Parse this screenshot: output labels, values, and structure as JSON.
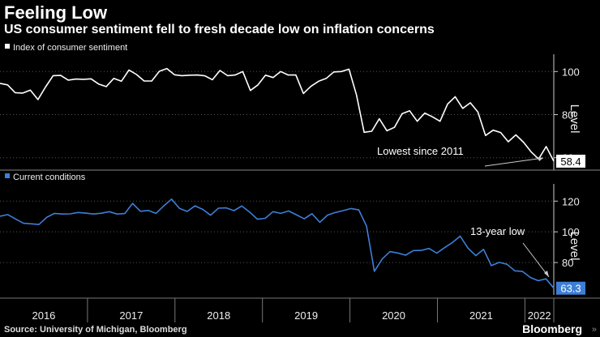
{
  "header": {
    "title": "Feeling Low",
    "subtitle": "US consumer sentiment fell to fresh decade low on inflation concerns"
  },
  "footer": {
    "source": "Source: University of Michigan, Bloomberg",
    "brand": "Bloomberg",
    "brand_mark": "»"
  },
  "colors": {
    "top": "#ffffff",
    "bottom": "#3d7fd6",
    "background": "#000000"
  },
  "chart_data": [
    {
      "type": "line",
      "legend": "Index of consumer sentiment",
      "ylabel": "Level",
      "ylim": [
        55,
        105
      ],
      "yticks": [
        60,
        80,
        100
      ],
      "x_start": 2016.0,
      "x_end": 2022.33,
      "annotation": "Lowest since 2011",
      "last_label": "58.4",
      "values": [
        94.5,
        93.8,
        90.2,
        90.0,
        91.4,
        87.0,
        92.8,
        98.1,
        98.2,
        96.0,
        96.5,
        96.4,
        96.6,
        94.2,
        93.0,
        96.8,
        95.5,
        100.7,
        98.6,
        95.6,
        95.6,
        100.1,
        101.4,
        98.5,
        98.1,
        98.3,
        98.4,
        98.0,
        96.2,
        100.5,
        98.1,
        98.4,
        100.0,
        91.2,
        93.8,
        98.3,
        97.2,
        100.0,
        98.4,
        98.4,
        89.8,
        93.2,
        95.5,
        96.8,
        99.8,
        100.0,
        101.1,
        89.1,
        71.8,
        72.3,
        78.1,
        72.5,
        74.1,
        80.4,
        81.8,
        76.9,
        80.7,
        79.0,
        76.9,
        84.9,
        88.3,
        82.9,
        85.5,
        81.2,
        70.3,
        72.8,
        71.7,
        67.4,
        70.6,
        67.2,
        62.8,
        59.4,
        65.2,
        58.4
      ]
    },
    {
      "type": "line",
      "legend": "Current conditions",
      "ylabel": "Level",
      "ylim": [
        60,
        127
      ],
      "yticks": [
        80,
        100,
        120
      ],
      "x_start": 2016.0,
      "x_end": 2022.33,
      "annotation": "13-year low",
      "last_label": "63.3",
      "values": [
        110.1,
        111.2,
        108.4,
        105.6,
        105.2,
        104.8,
        109.5,
        112.0,
        111.6,
        111.7,
        112.6,
        112.2,
        111.6,
        112.1,
        113.1,
        111.6,
        111.9,
        118.5,
        113.4,
        113.9,
        112.0,
        116.9,
        121.3,
        115.3,
        113.3,
        116.9,
        114.6,
        110.8,
        115.4,
        115.6,
        113.8,
        116.8,
        112.9,
        108.2,
        108.8,
        113.1,
        112.0,
        113.6,
        111.1,
        108.5,
        111.8,
        106.2,
        110.9,
        112.6,
        113.8,
        115.2,
        114.3,
        103.7,
        74.3,
        82.3,
        87.1,
        86.2,
        84.8,
        87.8,
        87.9,
        89.2,
        86.1,
        89.7,
        93.0,
        97.2,
        89.4,
        84.5,
        88.6,
        78.0,
        80.1,
        78.9,
        74.6,
        74.2,
        70.3,
        68.2,
        69.4,
        63.3
      ]
    }
  ],
  "x_axis": {
    "years": [
      "2016",
      "2017",
      "2018",
      "2019",
      "2020",
      "2021",
      "2022"
    ]
  }
}
